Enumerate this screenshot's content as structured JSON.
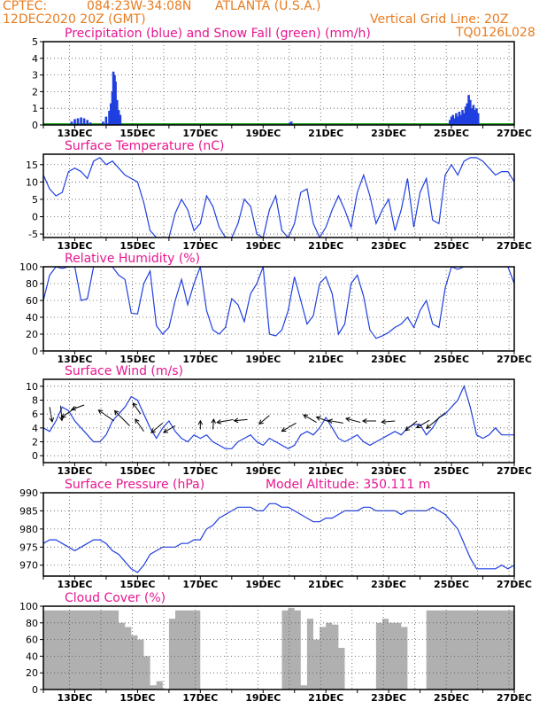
{
  "header": {
    "source": "CPTEC:",
    "coords": "084:23W-34:08N",
    "location": "ATLANTA (U.S.A.)",
    "datetime": "12DEC2020 20Z (GMT)",
    "grid_note": "Vertical Grid Line: 20Z",
    "code": "TQ0126L028"
  },
  "colors": {
    "header": "#e87b1e",
    "title": "#e8168f",
    "line": "#1f3fe0",
    "snow": "#22aa22",
    "cloud": "#b0b0b0"
  },
  "x_labels": [
    "13DEC",
    "15DEC",
    "17DEC",
    "19DEC",
    "21DEC",
    "23DEC",
    "25DEC",
    "27DEC"
  ],
  "chart_data": [
    {
      "type": "bar",
      "title": "Precipitation (blue) and Snow Fall (green) (mm/h)",
      "ylim": [
        0,
        5
      ],
      "yticks": [
        0,
        1,
        2,
        3,
        4,
        5
      ],
      "series": [
        {
          "name": "Precipitation",
          "points": [
            [
              12.9,
              0.2
            ],
            [
              13.0,
              0.35
            ],
            [
              13.1,
              0.4
            ],
            [
              13.2,
              0.45
            ],
            [
              13.3,
              0.4
            ],
            [
              13.4,
              0.3
            ],
            [
              13.5,
              0.15
            ],
            [
              13.9,
              0.2
            ],
            [
              14.0,
              0.5
            ],
            [
              14.1,
              0.85
            ],
            [
              14.15,
              1.3
            ],
            [
              14.2,
              2.0
            ],
            [
              14.23,
              3.2
            ],
            [
              14.27,
              3.0
            ],
            [
              14.3,
              2.6
            ],
            [
              14.35,
              1.5
            ],
            [
              14.4,
              0.9
            ],
            [
              14.45,
              0.6
            ],
            [
              19.85,
              0.15
            ],
            [
              19.9,
              0.2
            ],
            [
              24.95,
              0.3
            ],
            [
              25.0,
              0.5
            ],
            [
              25.05,
              0.6
            ],
            [
              25.1,
              0.4
            ],
            [
              25.15,
              0.7
            ],
            [
              25.2,
              0.5
            ],
            [
              25.25,
              0.8
            ],
            [
              25.3,
              0.6
            ],
            [
              25.35,
              0.9
            ],
            [
              25.4,
              0.7
            ],
            [
              25.45,
              1.1
            ],
            [
              25.5,
              1.3
            ],
            [
              25.55,
              1.8
            ],
            [
              25.6,
              1.5
            ],
            [
              25.65,
              1.0
            ],
            [
              25.7,
              1.2
            ],
            [
              25.75,
              0.9
            ],
            [
              25.8,
              1.0
            ],
            [
              25.85,
              0.7
            ]
          ]
        },
        {
          "name": "Snow Fall",
          "points": [
            [
              12.0,
              0.05
            ],
            [
              27.0,
              0.05
            ]
          ]
        }
      ]
    },
    {
      "type": "line",
      "title": "Surface Temperature (nC)",
      "ylim": [
        -6,
        18
      ],
      "yticks": [
        -5,
        0,
        5,
        10,
        15
      ],
      "x": [
        12.0,
        12.2,
        12.4,
        12.6,
        12.8,
        13.0,
        13.2,
        13.4,
        13.6,
        13.8,
        14.0,
        14.2,
        14.4,
        14.6,
        14.8,
        15.0,
        15.2,
        15.4,
        15.6,
        15.8,
        16.0,
        16.2,
        16.4,
        16.6,
        16.8,
        17.0,
        17.2,
        17.4,
        17.6,
        17.8,
        18.0,
        18.2,
        18.4,
        18.6,
        18.8,
        19.0,
        19.2,
        19.4,
        19.6,
        19.8,
        20.0,
        20.2,
        20.4,
        20.6,
        20.8,
        21.0,
        21.2,
        21.4,
        21.6,
        21.8,
        22.0,
        22.2,
        22.4,
        22.6,
        22.8,
        23.0,
        23.2,
        23.4,
        23.6,
        23.8,
        24.0,
        24.2,
        24.4,
        24.6,
        24.8,
        25.0,
        25.2,
        25.4,
        25.6,
        25.8,
        26.0,
        26.2,
        26.4,
        26.6,
        26.8,
        27.0
      ],
      "y": [
        12,
        8,
        6,
        7,
        13,
        14,
        13,
        11,
        16,
        17,
        15,
        16,
        14,
        12,
        11,
        10,
        4,
        -4,
        -6,
        -6,
        -6,
        1,
        5,
        2,
        -4,
        -2,
        6,
        3,
        -3,
        -6,
        -6,
        -2,
        5,
        3,
        -5,
        -6,
        2,
        6,
        -4,
        -6,
        -2,
        7,
        8,
        -2,
        -6,
        -3,
        2,
        6,
        2,
        -3,
        7,
        12,
        6,
        -2,
        2,
        5,
        -4,
        2,
        11,
        -3,
        7,
        11,
        -1,
        -2,
        12,
        15,
        12,
        16,
        17,
        17,
        16,
        14,
        12,
        13,
        13,
        10
      ]
    },
    {
      "type": "line",
      "title": "Relative Humidity (%)",
      "ylim": [
        0,
        100
      ],
      "yticks": [
        0,
        20,
        40,
        60,
        80,
        100
      ],
      "x": [
        12.0,
        12.2,
        12.4,
        12.6,
        12.8,
        13.0,
        13.2,
        13.4,
        13.6,
        13.8,
        14.0,
        14.2,
        14.4,
        14.6,
        14.8,
        15.0,
        15.2,
        15.4,
        15.6,
        15.8,
        16.0,
        16.2,
        16.4,
        16.6,
        16.8,
        17.0,
        17.2,
        17.4,
        17.6,
        17.8,
        18.0,
        18.2,
        18.4,
        18.6,
        18.8,
        19.0,
        19.2,
        19.4,
        19.6,
        19.8,
        20.0,
        20.2,
        20.4,
        20.6,
        20.8,
        21.0,
        21.2,
        21.4,
        21.6,
        21.8,
        22.0,
        22.2,
        22.4,
        22.6,
        22.8,
        23.0,
        23.2,
        23.4,
        23.6,
        23.8,
        24.0,
        24.2,
        24.4,
        24.6,
        24.8,
        25.0,
        25.2,
        25.4,
        25.6,
        25.8,
        26.0,
        26.2,
        26.4,
        26.6,
        26.8,
        27.0
      ],
      "y": [
        60,
        90,
        100,
        98,
        100,
        100,
        60,
        62,
        100,
        100,
        100,
        100,
        90,
        85,
        45,
        44,
        80,
        95,
        30,
        20,
        28,
        60,
        85,
        55,
        80,
        100,
        48,
        25,
        20,
        28,
        62,
        55,
        35,
        68,
        80,
        100,
        20,
        18,
        25,
        48,
        88,
        60,
        32,
        42,
        80,
        88,
        68,
        20,
        32,
        80,
        90,
        65,
        25,
        15,
        18,
        22,
        28,
        32,
        40,
        28,
        48,
        60,
        32,
        28,
        75,
        100,
        97,
        100,
        100,
        100,
        100,
        100,
        100,
        100,
        100,
        80
      ]
    },
    {
      "type": "line",
      "title": "Surface Wind (m/s)",
      "ylim": [
        -1,
        11
      ],
      "yticks": [
        0,
        2,
        4,
        6,
        8,
        10
      ],
      "x": [
        12.0,
        12.2,
        12.4,
        12.6,
        12.8,
        13.0,
        13.2,
        13.4,
        13.6,
        13.8,
        14.0,
        14.2,
        14.4,
        14.6,
        14.8,
        15.0,
        15.2,
        15.4,
        15.6,
        15.8,
        16.0,
        16.2,
        16.4,
        16.6,
        16.8,
        17.0,
        17.2,
        17.4,
        17.6,
        17.8,
        18.0,
        18.2,
        18.4,
        18.6,
        18.8,
        19.0,
        19.2,
        19.4,
        19.6,
        19.8,
        20.0,
        20.2,
        20.4,
        20.6,
        20.8,
        21.0,
        21.2,
        21.4,
        21.6,
        21.8,
        22.0,
        22.2,
        22.4,
        22.6,
        22.8,
        23.0,
        23.2,
        23.4,
        23.6,
        23.8,
        24.0,
        24.2,
        24.4,
        24.6,
        24.8,
        25.0,
        25.2,
        25.4,
        25.6,
        25.8,
        26.0,
        26.2,
        26.4,
        26.6,
        26.8,
        27.0
      ],
      "y": [
        4,
        3.5,
        5,
        7,
        6.5,
        5,
        4,
        3,
        2,
        2,
        3,
        5,
        6,
        7,
        8.5,
        8,
        6,
        4,
        2.5,
        4,
        5,
        3.5,
        2.5,
        2,
        3,
        2.5,
        3,
        2,
        1.5,
        1,
        1,
        2,
        2.5,
        3,
        2,
        1.5,
        2.5,
        2,
        1.5,
        1,
        1.5,
        3,
        3.5,
        3,
        4,
        5.5,
        4,
        2.5,
        2,
        2.5,
        3,
        2,
        1.5,
        2,
        2.5,
        3,
        3.5,
        3,
        4,
        4.5,
        4.5,
        3,
        4,
        5.5,
        6,
        7,
        8,
        10,
        7,
        3,
        2.5,
        3,
        4,
        3,
        3,
        3
      ],
      "arrows": [
        [
          12.2,
          7,
          1.2,
          80
        ],
        [
          12.55,
          7.2,
          1.2,
          85
        ],
        [
          13.05,
          7,
          -1.6,
          35
        ],
        [
          13.3,
          7.3,
          -1,
          20
        ],
        [
          14.25,
          5,
          -1.7,
          -35
        ],
        [
          14.75,
          4.3,
          -2,
          -45
        ],
        [
          15.2,
          3.5,
          -1.2,
          -55
        ],
        [
          15.1,
          6,
          -1,
          -55
        ],
        [
          15.8,
          4.7,
          -1.2,
          40
        ],
        [
          16.2,
          4.3,
          -1,
          30
        ],
        [
          17.0,
          3.8,
          0.4,
          -90
        ],
        [
          17.4,
          3.8,
          0.6,
          -85
        ],
        [
          18.05,
          5.2,
          -1.4,
          10
        ],
        [
          18.5,
          5.2,
          -1,
          5
        ],
        [
          19.2,
          5.8,
          -1,
          40
        ],
        [
          20.05,
          4.7,
          -1.4,
          30
        ],
        [
          20.7,
          4.8,
          -1.2,
          -30
        ],
        [
          21.1,
          4.9,
          -1,
          -20
        ],
        [
          21.55,
          4.7,
          -1.2,
          -10
        ],
        [
          22.1,
          4.8,
          -1.2,
          -15
        ],
        [
          22.6,
          5,
          -1,
          0
        ],
        [
          23.2,
          5,
          -1,
          5
        ],
        [
          23.9,
          5,
          -1.2,
          40
        ],
        [
          24.3,
          5.1,
          -1.2,
          30
        ],
        [
          24.8,
          6.2,
          -2.4,
          40
        ]
      ]
    },
    {
      "type": "line",
      "title": "Surface Pressure (hPa)",
      "subtitle": "Model Altitude: 350.111 m",
      "ylim": [
        967,
        990
      ],
      "yticks": [
        970,
        975,
        980,
        985,
        990
      ],
      "x": [
        12.0,
        12.2,
        12.4,
        12.6,
        12.8,
        13.0,
        13.2,
        13.4,
        13.6,
        13.8,
        14.0,
        14.2,
        14.4,
        14.6,
        14.8,
        15.0,
        15.2,
        15.4,
        15.6,
        15.8,
        16.0,
        16.2,
        16.4,
        16.6,
        16.8,
        17.0,
        17.2,
        17.4,
        17.6,
        17.8,
        18.0,
        18.2,
        18.4,
        18.6,
        18.8,
        19.0,
        19.2,
        19.4,
        19.6,
        19.8,
        20.0,
        20.2,
        20.4,
        20.6,
        20.8,
        21.0,
        21.2,
        21.4,
        21.6,
        21.8,
        22.0,
        22.2,
        22.4,
        22.6,
        22.8,
        23.0,
        23.2,
        23.4,
        23.6,
        23.8,
        24.0,
        24.2,
        24.4,
        24.6,
        24.8,
        25.0,
        25.2,
        25.4,
        25.6,
        25.8,
        26.0,
        26.2,
        26.4,
        26.6,
        26.8,
        27.0
      ],
      "y": [
        976,
        977,
        977,
        976,
        975,
        974,
        975,
        976,
        977,
        977,
        976,
        974,
        973,
        971,
        969,
        968,
        970,
        973,
        974,
        975,
        975,
        975,
        976,
        976,
        977,
        977,
        980,
        981,
        983,
        984,
        985,
        986,
        986,
        986,
        985,
        985,
        987,
        987,
        986,
        986,
        985,
        984,
        983,
        982,
        982,
        983,
        983,
        984,
        985,
        985,
        985,
        986,
        986,
        985,
        985,
        985,
        985,
        984,
        985,
        985,
        985,
        985,
        986,
        985,
        984,
        982,
        980,
        976,
        972,
        969,
        969,
        969,
        969,
        970,
        969,
        970
      ]
    },
    {
      "type": "area",
      "title": "Cloud Cover (%)",
      "ylim": [
        0,
        100
      ],
      "yticks": [
        0,
        20,
        40,
        60,
        80,
        100
      ],
      "x": [
        12.0,
        12.2,
        12.4,
        12.6,
        12.8,
        13.0,
        13.2,
        13.4,
        13.6,
        13.8,
        14.0,
        14.2,
        14.4,
        14.6,
        14.8,
        15.0,
        15.2,
        15.4,
        15.6,
        15.8,
        16.0,
        16.2,
        16.4,
        16.6,
        16.8,
        17.0,
        17.2,
        17.4,
        17.6,
        17.8,
        18.0,
        18.2,
        18.4,
        18.6,
        18.8,
        19.0,
        19.2,
        19.4,
        19.6,
        19.8,
        20.0,
        20.2,
        20.4,
        20.6,
        20.8,
        21.0,
        21.2,
        21.4,
        21.6,
        21.8,
        22.0,
        22.2,
        22.4,
        22.6,
        22.8,
        23.0,
        23.2,
        23.4,
        23.6,
        23.8,
        24.0,
        24.2,
        24.4,
        24.6,
        24.8,
        25.0,
        25.2,
        25.4,
        25.6,
        25.8,
        26.0,
        26.2,
        26.4,
        26.6,
        26.8,
        27.0
      ],
      "y": [
        95,
        95,
        95,
        95,
        95,
        95,
        95,
        95,
        95,
        95,
        95,
        95,
        80,
        75,
        65,
        60,
        40,
        5,
        10,
        0,
        85,
        95,
        95,
        95,
        95,
        0,
        0,
        0,
        0,
        0,
        0,
        0,
        0,
        0,
        0,
        0,
        0,
        0,
        95,
        98,
        95,
        5,
        85,
        60,
        75,
        80,
        78,
        50,
        0,
        0,
        0,
        0,
        0,
        80,
        85,
        80,
        80,
        75,
        0,
        0,
        0,
        95,
        95,
        95,
        95,
        95,
        95,
        95,
        95,
        95,
        95,
        95,
        95,
        95,
        95,
        85
      ]
    }
  ]
}
